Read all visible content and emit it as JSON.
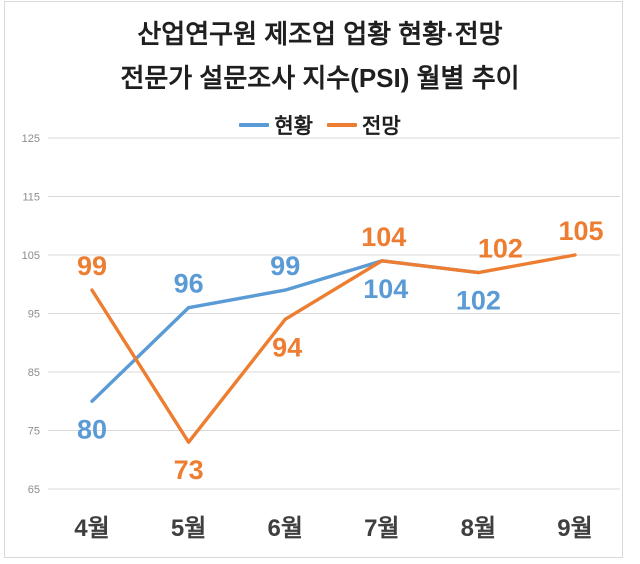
{
  "title": {
    "line1": "산업연구원 제조업 업황 현황·전망",
    "line2": "전문가 설문조사 지수(PSI) 월별 추이"
  },
  "legend": {
    "items": [
      {
        "label": "현황",
        "color": "#5B9BD5"
      },
      {
        "label": "전망",
        "color": "#ED7D31"
      }
    ]
  },
  "colors": {
    "series_current": "#5B9BD5",
    "series_outlook": "#ED7D31",
    "gridline": "#D9D9D9",
    "axis_text": "#8C8C8C",
    "month_text": "#3F3F3F"
  },
  "chart_data": {
    "type": "line",
    "categories": [
      "4월",
      "5월",
      "6월",
      "7월",
      "8월",
      "9월"
    ],
    "series": [
      {
        "name": "현황",
        "color": "#5B9BD5",
        "values": [
          80,
          96,
          99,
          104,
          102,
          null
        ],
        "label_pos": [
          "below",
          "above",
          "above",
          "below",
          "below",
          null
        ],
        "label_dx": [
          0,
          0,
          0,
          4,
          0,
          0
        ]
      },
      {
        "name": "전망",
        "color": "#ED7D31",
        "values": [
          99,
          73,
          94,
          104,
          102,
          105
        ],
        "label_pos": [
          "above",
          "below",
          "below",
          "above",
          "above",
          "above"
        ],
        "label_dx": [
          0,
          0,
          2,
          2,
          22,
          6
        ]
      }
    ],
    "title": "산업연구원 제조업 업황 현황·전망 전문가 설문조사 지수(PSI) 월별 추이",
    "xlabel": "",
    "ylabel": "",
    "ylim": [
      65,
      125
    ],
    "yticks": [
      65,
      75,
      85,
      95,
      105,
      115,
      125
    ],
    "grid": true,
    "legend_position": "top"
  }
}
